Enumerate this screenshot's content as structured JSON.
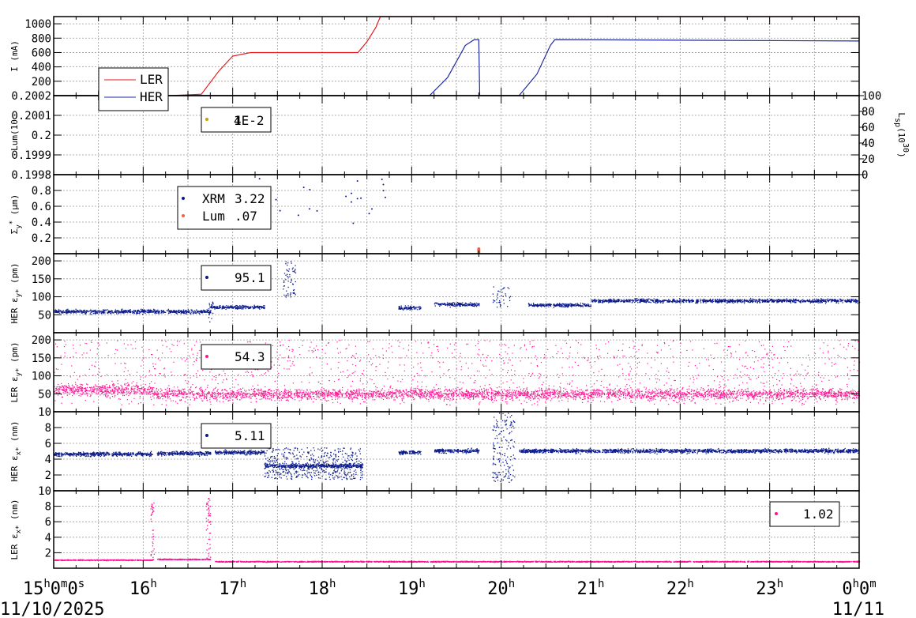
{
  "colors": {
    "LER": "#e8191b",
    "HER": "#1e2a9c",
    "pink": "#ff1493",
    "navy": "#0a1a8c",
    "orange": "#f06040",
    "olive": "#c8a000"
  },
  "x_axis": {
    "major_labels": [
      {
        "h": "15",
        "sup1": "h",
        "m": "0",
        "sup2": "m",
        "s": "0",
        "sup3": "s"
      },
      {
        "h": "16",
        "sup1": "h"
      },
      {
        "h": "17",
        "sup1": "h"
      },
      {
        "h": "18",
        "sup1": "h"
      },
      {
        "h": "19",
        "sup1": "h"
      },
      {
        "h": "20",
        "sup1": "h"
      },
      {
        "h": "21",
        "sup1": "h"
      },
      {
        "h": "22",
        "sup1": "h"
      },
      {
        "h": "23",
        "sup1": "h"
      },
      {
        "h": "0",
        "sup1": "h",
        "m": "0",
        "sup2": "m"
      }
    ],
    "date_left": "11/10/2025",
    "date_right": "11/11"
  },
  "chart_data": [
    {
      "type": "line",
      "ylabel": "I (mA)",
      "ylim": [
        0,
        1100
      ],
      "yticks": [
        "1000",
        "800",
        "600",
        "400",
        "200"
      ],
      "x": [
        15.0,
        16.0,
        16.3,
        16.65,
        16.85,
        17.0,
        17.2,
        18.0,
        18.4,
        18.5,
        18.6,
        18.65,
        19.0,
        20.0,
        21.0,
        22.0,
        23.0,
        24.0
      ],
      "series": [
        {
          "name": "LER",
          "values": [
            0,
            0,
            0,
            20,
            350,
            550,
            600,
            600,
            600,
            750,
            950,
            1100,
            1100,
            1100,
            1100,
            1100,
            1100,
            1100
          ]
        },
        {
          "name": "HER",
          "values": [
            0,
            0,
            0,
            0,
            0,
            0,
            0,
            0,
            0,
            0,
            0,
            0,
            0,
            780,
            780,
            780,
            780,
            780
          ]
        }
      ],
      "legend": "bottom-left"
    },
    {
      "type": "scatter",
      "ylabel": "Lum(10",
      "ylim": [
        0.1998,
        0.2002
      ],
      "yticks": [
        "0.2002",
        "0.2001",
        "0.2",
        "0.1999",
        "0.1998"
      ],
      "y2label": "L",
      "y2sub": "sp",
      "y2rest": "(10",
      "y2sup": "30",
      "y2close": ")",
      "y2ticks": [
        "100",
        "80",
        "60",
        "40",
        "20",
        "0"
      ],
      "legend_overlap": [
        "4",
        "1E-2"
      ]
    },
    {
      "type": "scatter",
      "ylabel": "Σ",
      "ylabel_sub": "y",
      "ylabel_sup": "*",
      "ylabel_unit": " (μm)",
      "ylim": [
        0,
        1
      ],
      "yticks": [
        "0.8",
        "0.6",
        "0.4",
        "0.2"
      ],
      "series": [
        {
          "name": "XRM",
          "value": "3.22"
        },
        {
          "name": "Lum",
          "value": ".07"
        }
      ]
    },
    {
      "type": "scatter",
      "ylabel": "HER ε",
      "ylabel_sub": "y*",
      "ylabel_unit": " (pm)",
      "ylim": [
        0,
        220
      ],
      "yticks": [
        "200",
        "150",
        "100",
        "50"
      ],
      "legend_value": "95.1",
      "segments": [
        [
          15.0,
          16.1,
          60
        ],
        [
          16.1,
          16.75,
          60
        ],
        [
          16.75,
          17.35,
          72
        ],
        [
          18.85,
          19.1,
          70
        ],
        [
          19.25,
          19.75,
          80
        ],
        [
          20.3,
          21.0,
          78
        ],
        [
          21.0,
          22.0,
          90
        ],
        [
          22.0,
          24.0,
          90
        ]
      ]
    },
    {
      "type": "scatter",
      "ylabel": "LER ε",
      "ylabel_sub": "y*",
      "ylabel_unit": " (pm)",
      "ylim": [
        0,
        220
      ],
      "yticks": [
        "200",
        "150",
        "100",
        "50"
      ],
      "legend_value": "54.3"
    },
    {
      "type": "scatter",
      "ylabel": "HER ε",
      "ylabel_sub": "x*",
      "ylabel_unit": " (nm)",
      "ylim": [
        0,
        10
      ],
      "yticks": [
        "10",
        "8",
        "6",
        "4",
        "2"
      ],
      "legend_value": "5.11",
      "segments": [
        [
          15.0,
          16.1,
          4.7
        ],
        [
          16.15,
          16.75,
          4.8
        ],
        [
          16.8,
          17.35,
          4.9
        ],
        [
          17.35,
          18.45,
          3.2
        ],
        [
          18.85,
          19.1,
          4.9
        ],
        [
          19.25,
          19.75,
          5.1
        ],
        [
          20.2,
          24.0,
          5.1
        ]
      ]
    },
    {
      "type": "scatter",
      "ylabel": "LER ε",
      "ylabel_sub": "x*",
      "ylabel_unit": " (nm)",
      "ylim": [
        0,
        10
      ],
      "yticks": [
        "10",
        "8",
        "6",
        "4",
        "2"
      ],
      "legend_value": "1.02",
      "segments": [
        [
          15.0,
          16.1,
          1.1
        ],
        [
          16.15,
          16.75,
          1.2
        ],
        [
          16.8,
          24.0,
          0.9
        ]
      ]
    }
  ]
}
